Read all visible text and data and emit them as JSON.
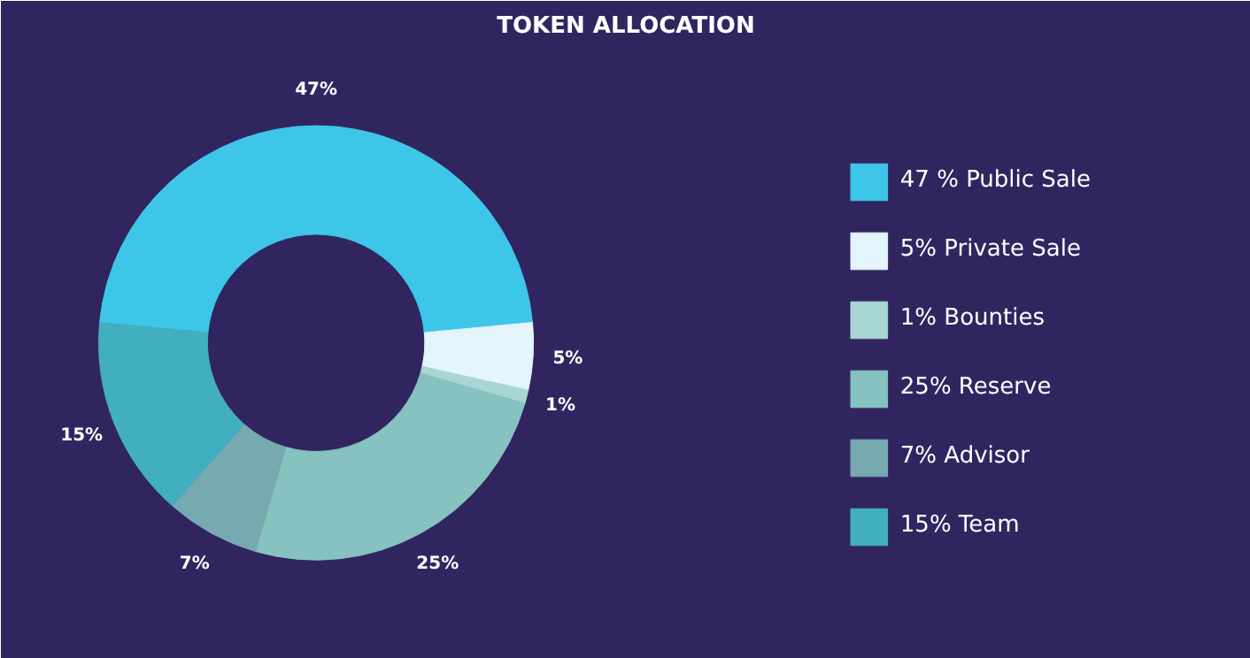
{
  "chart_data": {
    "type": "donut",
    "title": "TOKEN ALLOCATION",
    "categories": [
      "47 % Public Sale",
      "5% Private Sale",
      "1% Bounties",
      "25% Reserve",
      "7% Advisor",
      "15% Team"
    ],
    "values": [
      47,
      5,
      1,
      25,
      7,
      15
    ],
    "colors": [
      "#3ec6e8",
      "#e3f4fa",
      "#a8d6d4",
      "#86c2bf",
      "#76aab0",
      "#42afc0"
    ],
    "value_labels": [
      "47%",
      "5%",
      "1%",
      "25%",
      "7%",
      "15%"
    ],
    "legend": "right"
  }
}
